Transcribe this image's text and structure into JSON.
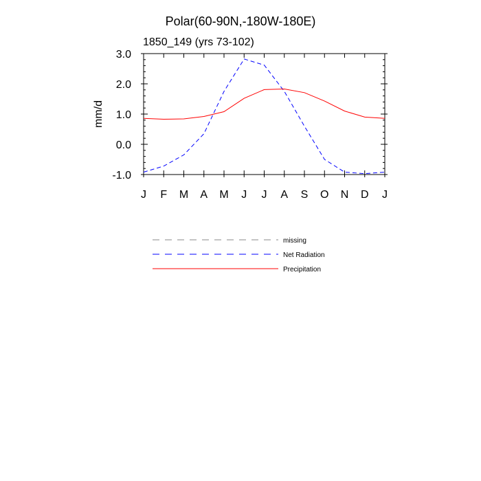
{
  "chart_data": {
    "type": "line",
    "title": "Polar(60-90N,-180W-180E)",
    "subtitle": "1850_149 (yrs 73-102)",
    "xlabel": "",
    "ylabel": "mm/d",
    "categories": [
      "J",
      "F",
      "M",
      "A",
      "M",
      "J",
      "J",
      "A",
      "S",
      "O",
      "N",
      "D",
      "J"
    ],
    "ylim": [
      -1.0,
      3.0
    ],
    "yticks": [
      "-1.0",
      "0.0",
      "1.0",
      "2.0",
      "3.0"
    ],
    "grid": false,
    "legend_position": "below",
    "series": [
      {
        "name": "Net Radiation",
        "color": "#0000ff",
        "style": "dashed",
        "values": [
          -0.92,
          -0.72,
          -0.35,
          0.35,
          1.75,
          2.82,
          2.62,
          1.75,
          0.6,
          -0.5,
          -0.92,
          -0.97,
          -0.92
        ]
      },
      {
        "name": "Precipitation",
        "color": "#ff0000",
        "style": "solid",
        "values": [
          0.86,
          0.83,
          0.84,
          0.92,
          1.08,
          1.52,
          1.81,
          1.83,
          1.71,
          1.43,
          1.1,
          0.9,
          0.86
        ]
      }
    ],
    "legend": [
      {
        "label": "missing",
        "color": "#888888",
        "style": "dashed"
      },
      {
        "label": "Net Radiation",
        "color": "#0000ff",
        "style": "dashed"
      },
      {
        "label": "Precipitation",
        "color": "#ff0000",
        "style": "solid"
      }
    ]
  }
}
